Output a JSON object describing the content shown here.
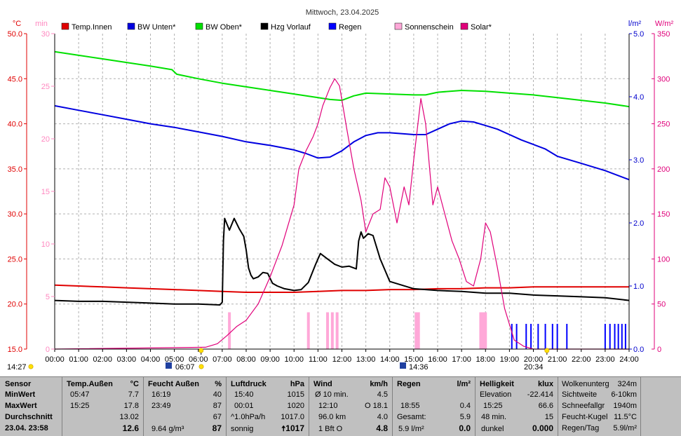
{
  "title": "Mittwoch, 23.04.2025",
  "axis_units": {
    "left1": "°C",
    "left2": "min",
    "right1": "l/m²",
    "right2": "W/m²"
  },
  "legend": [
    {
      "label": "Temp.Innen",
      "color": "#e00000"
    },
    {
      "label": "BW Unten*",
      "color": "#0000e0"
    },
    {
      "label": "BW Oben*",
      "color": "#00e000"
    },
    {
      "label": "Hzg Vorlauf",
      "color": "#000000"
    },
    {
      "label": "Regen",
      "color": "#0000ff"
    },
    {
      "label": "Sonnenschein",
      "color": "#ffa8d8"
    },
    {
      "label": "Solar*",
      "color": "#e0007a"
    }
  ],
  "markers": {
    "left_time": "14:27",
    "sunrise": "06:07",
    "noon": "14:36",
    "sunset": "20:34"
  },
  "chart_data": {
    "type": "line",
    "title": "Mittwoch, 23.04.2025",
    "x_ticks": [
      "00:00",
      "01:00",
      "02:00",
      "03:00",
      "04:00",
      "05:00",
      "06:00",
      "07:00",
      "08:00",
      "09:00",
      "10:00",
      "11:00",
      "12:00",
      "13:00",
      "14:00",
      "15:00",
      "16:00",
      "17:00",
      "18:00",
      "19:00",
      "20:00",
      "21:00",
      "22:00",
      "23:00",
      "24:00"
    ],
    "xlim": [
      0,
      24
    ],
    "y_temp_ticks": [
      "15.0",
      "20.0",
      "25.0",
      "30.0",
      "35.0",
      "40.0",
      "45.0",
      "50.0"
    ],
    "y_temp_lim": [
      15,
      50
    ],
    "y_min_ticks": [
      "0",
      "5",
      "10",
      "15",
      "20",
      "25",
      "30"
    ],
    "y_min_lim": [
      0,
      30
    ],
    "y_rain_ticks": [
      "0.0",
      "1.0",
      "2.0",
      "3.0",
      "4.0",
      "5.0"
    ],
    "y_rain_lim": [
      0,
      5
    ],
    "y_solar_ticks": [
      "0",
      "50",
      "100",
      "150",
      "200",
      "250",
      "300",
      "350"
    ],
    "y_solar_lim": [
      0,
      350
    ],
    "series": [
      {
        "name": "Temp.Innen",
        "axis": "temp",
        "color": "#e00000",
        "x": [
          0,
          1,
          2,
          3,
          4,
          5,
          6,
          7,
          8,
          9,
          10,
          11,
          12,
          13,
          14,
          15,
          16,
          17,
          18,
          19,
          20,
          21,
          22,
          23,
          24
        ],
        "y": [
          22.1,
          22.0,
          21.9,
          21.8,
          21.7,
          21.6,
          21.5,
          21.4,
          21.3,
          21.3,
          21.3,
          21.4,
          21.5,
          21.5,
          21.6,
          21.6,
          21.7,
          21.7,
          21.8,
          21.8,
          21.9,
          21.9,
          21.9,
          21.9,
          21.9
        ]
      },
      {
        "name": "BW Unten*",
        "axis": "temp",
        "color": "#0000e0",
        "x": [
          0,
          1,
          2,
          3,
          4,
          5,
          6,
          7,
          8,
          9,
          10,
          10.5,
          11,
          11.5,
          12,
          12.5,
          13,
          13.5,
          14,
          15,
          15.5,
          16,
          16.5,
          17,
          17.5,
          18,
          18.5,
          19,
          19.5,
          20,
          20.5,
          21,
          22,
          23,
          24
        ],
        "y": [
          42.0,
          41.5,
          41.0,
          40.5,
          40.0,
          39.6,
          39.1,
          38.6,
          38.0,
          37.6,
          37.1,
          36.7,
          36.2,
          36.3,
          37.0,
          38.0,
          38.7,
          39.0,
          39.0,
          38.8,
          38.8,
          39.4,
          40.0,
          40.3,
          40.2,
          39.8,
          39.4,
          38.8,
          38.2,
          37.7,
          37.2,
          36.4,
          35.6,
          34.8,
          33.8
        ]
      },
      {
        "name": "BW Oben*",
        "axis": "temp",
        "color": "#00e000",
        "x": [
          0,
          1,
          2,
          3,
          4,
          4.9,
          5.1,
          6,
          7,
          8,
          9,
          10,
          11,
          11.5,
          12,
          12.5,
          13,
          14,
          15,
          15.5,
          16,
          17,
          18,
          19,
          20,
          21,
          22,
          23,
          24
        ],
        "y": [
          48.0,
          47.6,
          47.2,
          46.8,
          46.4,
          46.0,
          45.5,
          45.0,
          44.5,
          44.1,
          43.7,
          43.3,
          42.9,
          42.7,
          42.6,
          43.1,
          43.4,
          43.3,
          43.2,
          43.2,
          43.5,
          43.7,
          43.6,
          43.4,
          43.2,
          42.9,
          42.6,
          42.3,
          41.9
        ]
      },
      {
        "name": "Hzg Vorlauf",
        "axis": "temp",
        "color": "#000000",
        "x": [
          0,
          1,
          2,
          3,
          4,
          5,
          6,
          6.9,
          7.0,
          7.05,
          7.1,
          7.3,
          7.5,
          7.7,
          7.9,
          8.0,
          8.1,
          8.2,
          8.3,
          8.5,
          8.7,
          8.9,
          9.1,
          9.3,
          9.6,
          10,
          10.3,
          10.6,
          10.9,
          11.1,
          11.4,
          11.7,
          12,
          12.3,
          12.6,
          12.7,
          12.8,
          12.9,
          13.1,
          13.3,
          13.6,
          14,
          15,
          16,
          17,
          18,
          19,
          20,
          21,
          22,
          23,
          24
        ],
        "y": [
          20.4,
          20.3,
          20.3,
          20.2,
          20.1,
          20.0,
          20.0,
          19.9,
          20.2,
          27.0,
          29.5,
          28.2,
          29.5,
          28.4,
          27.5,
          26.0,
          24.0,
          23.2,
          22.8,
          23.0,
          23.5,
          23.4,
          22.3,
          22.0,
          21.7,
          21.5,
          21.6,
          22.4,
          24.4,
          25.6,
          25.0,
          24.4,
          24.1,
          24.2,
          23.9,
          27.0,
          28.0,
          27.3,
          27.8,
          27.6,
          25.0,
          22.5,
          21.7,
          21.5,
          21.4,
          21.2,
          21.2,
          21.0,
          20.9,
          20.8,
          20.7,
          20.4
        ]
      },
      {
        "name": "Solar*",
        "axis": "solar",
        "color": "#e0007a",
        "x": [
          0,
          6.3,
          6.8,
          7.2,
          7.6,
          8.0,
          8.5,
          9.0,
          9.5,
          10.0,
          10.2,
          10.5,
          10.8,
          11.0,
          11.2,
          11.5,
          11.7,
          11.9,
          12.2,
          12.5,
          12.8,
          13.0,
          13.3,
          13.6,
          13.8,
          14.0,
          14.3,
          14.6,
          14.8,
          15.0,
          15.3,
          15.5,
          15.8,
          16.0,
          16.3,
          16.6,
          16.9,
          17.2,
          17.5,
          17.8,
          18.0,
          18.2,
          18.5,
          18.8,
          19.2,
          19.6,
          20,
          24
        ],
        "y": [
          0,
          2,
          6,
          15,
          25,
          32,
          50,
          80,
          115,
          160,
          200,
          220,
          236,
          250,
          270,
          290,
          300,
          292,
          245,
          200,
          165,
          130,
          150,
          155,
          190,
          180,
          140,
          180,
          160,
          210,
          278,
          250,
          160,
          180,
          150,
          120,
          100,
          75,
          70,
          100,
          140,
          130,
          90,
          45,
          10,
          3,
          0,
          0
        ]
      }
    ],
    "sunshine_minutes": {
      "name": "Sonnenschein",
      "axis": "min",
      "color": "#ffa8d8",
      "x": [
        7.3,
        10.6,
        11.4,
        11.6,
        11.8,
        15.1,
        15.2,
        17.8,
        17.9,
        18.0
      ],
      "values": [
        3.5,
        3.5,
        3.5,
        3.5,
        3.5,
        3.5,
        3.5,
        3.5,
        3.5,
        3.5
      ]
    },
    "rain_bars": {
      "name": "Regen",
      "axis": "rain",
      "color": "#0000ff",
      "x": [
        19.1,
        19.3,
        19.7,
        19.9,
        20.2,
        20.5,
        20.8,
        21.0,
        21.4,
        23.0,
        23.2,
        23.4,
        23.55,
        23.7,
        23.85
      ],
      "values": [
        0.4,
        0.4,
        0.4,
        0.4,
        0.4,
        0.4,
        0.4,
        0.4,
        0.4,
        0.4,
        0.4,
        0.4,
        0.4,
        0.4,
        0.4
      ]
    }
  },
  "table": {
    "sensor": {
      "head": "Sensor",
      "r1": "MinWert",
      "r2": "MaxWert",
      "r3": "Durchschnitt",
      "r4": "23.04. 23:58"
    },
    "temp": {
      "head": "Temp.Außen",
      "unit": "°C",
      "r1a": "05:47",
      "r1b": "7.7",
      "r2a": "15:25",
      "r2b": "17.8",
      "r3b": "13.02",
      "r4b": "12.6"
    },
    "feucht": {
      "head": "Feucht Außen",
      "unit": "%",
      "r1a": "16:19",
      "r1b": "40",
      "r2a": "23:49",
      "r2b": "87",
      "r3b": "67",
      "r4a": "9.64 g/m³",
      "r4b": "87"
    },
    "luft": {
      "head": "Luftdruck",
      "unit": "hPa",
      "r1a": "15:40",
      "r1b": "1015",
      "r2a": "00:01",
      "r2b": "1020",
      "r3a": "^1.0hPa/h",
      "r3b": "1017.0",
      "r4a": "sonnig",
      "r4b": "1017"
    },
    "wind": {
      "head": "Wind",
      "unit": "km/h",
      "r1a": "Ø 10 min.",
      "r1b": "4.5",
      "r2a": "12:10",
      "r2b": "O 18.1",
      "r3a": "96.0 km",
      "r3b": "4.0",
      "r4a": "1 Bft O",
      "r4b": "4.8"
    },
    "regen": {
      "head": "Regen",
      "unit": "l/m²",
      "r2a": "18:55",
      "r2b": "0.4",
      "r3a": "Gesamt:",
      "r3b": "5.9",
      "r4a": "5.9 l/m²",
      "r4b": "0.0"
    },
    "hell": {
      "head": "Helligkeit",
      "unit": "klux",
      "r1a": "Elevation",
      "r1b": "-22.414",
      "r2a": "15:25",
      "r2b": "66.6",
      "r3a": "48 min.",
      "r3b": "15",
      "r4a": "dunkel",
      "r4b": "0.000"
    },
    "extra": {
      "r0a": "Wolkenunterg",
      "r0b": "324m",
      "r1a": "Sichtweite",
      "r1b": "6-10km",
      "r2a": "Schneefallgr",
      "r2b": "1940m",
      "r3a": "Feucht-Kugel",
      "r3b": "11.5°C",
      "r4a": "Regen/Tag",
      "r4b": "5.9l/m²"
    }
  }
}
